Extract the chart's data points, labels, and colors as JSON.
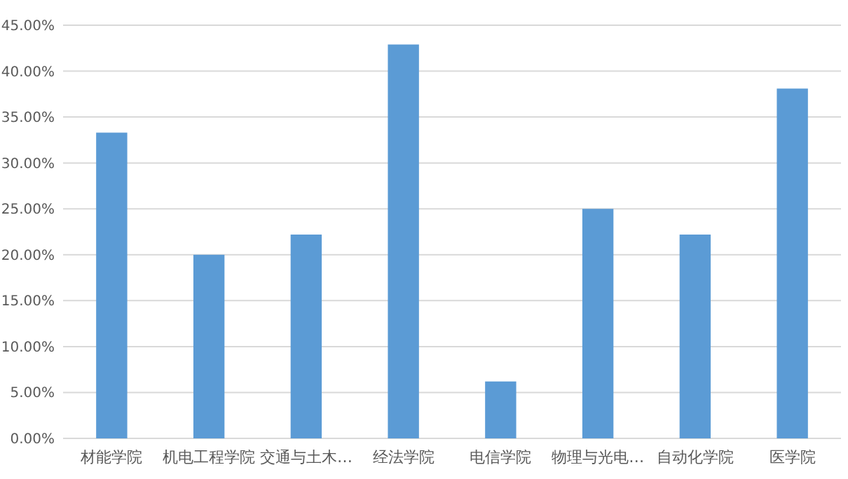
{
  "chart_data": {
    "type": "bar",
    "categories": [
      "材能学院",
      "机电工程学院",
      "交通与土木…",
      "经法学院",
      "电信学院",
      "物理与光电…",
      "自动化学院",
      "医学院"
    ],
    "values": [
      33.3,
      20.0,
      22.2,
      42.9,
      6.2,
      25.0,
      22.2,
      38.1
    ],
    "color": "#5b9bd5",
    "ylim": [
      0,
      45
    ],
    "yticks": [
      {
        "value": 0,
        "label": "0.00%"
      },
      {
        "value": 5,
        "label": "5.00%"
      },
      {
        "value": 10,
        "label": "10.00%"
      },
      {
        "value": 15,
        "label": "15.00%"
      },
      {
        "value": 20,
        "label": "20.00%"
      },
      {
        "value": 25,
        "label": "25.00%"
      },
      {
        "value": 30,
        "label": "30.00%"
      },
      {
        "value": 35,
        "label": "35.00%"
      },
      {
        "value": 40,
        "label": "40.00%"
      },
      {
        "value": 45,
        "label": "45.00%"
      }
    ],
    "grid": "y"
  }
}
